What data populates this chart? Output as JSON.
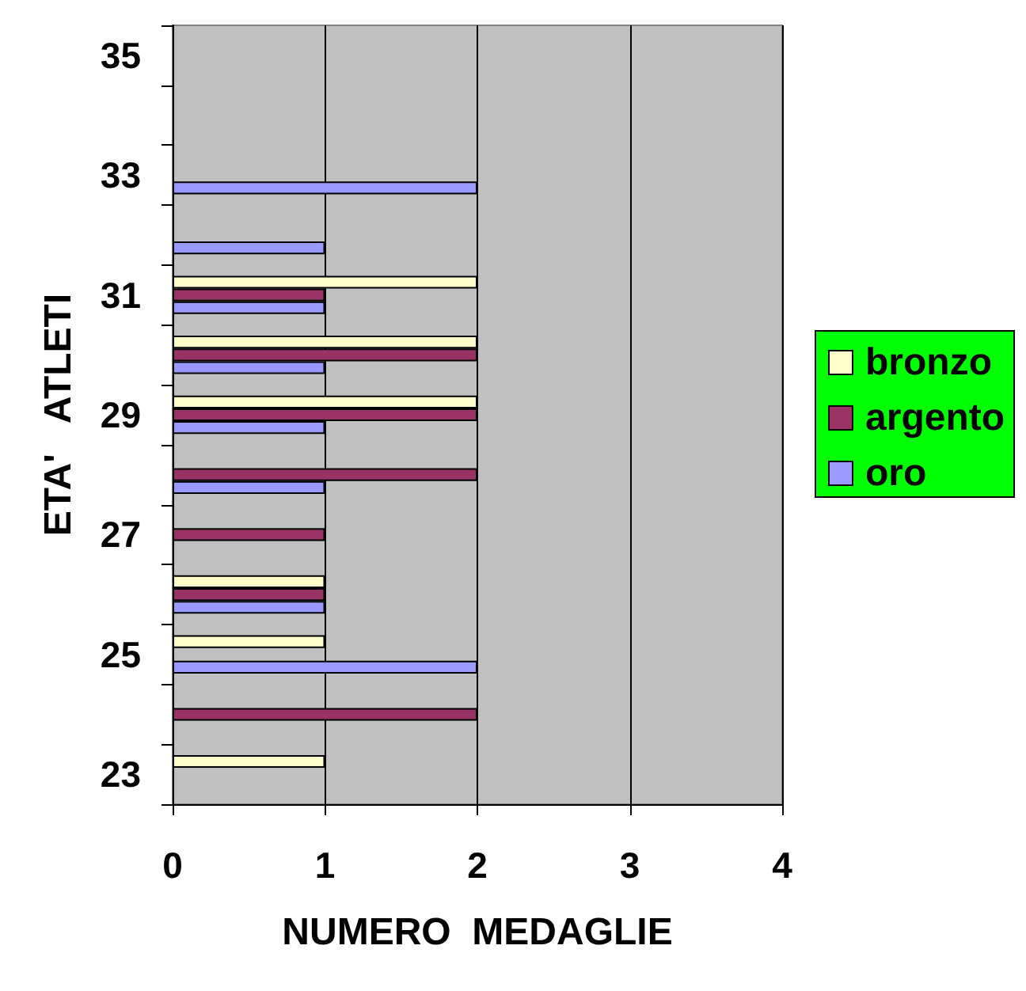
{
  "chart_data": {
    "type": "bar",
    "orientation": "horizontal",
    "xlabel": "NUMERO  MEDAGLIE",
    "ylabel": "ETA'   ATLETI",
    "categories": [
      "35",
      null,
      "33",
      null,
      "31",
      null,
      "29",
      null,
      "27",
      null,
      "25",
      null,
      "23"
    ],
    "series": [
      {
        "name": "bronzo",
        "color": "#ffffcc",
        "values": [
          null,
          null,
          null,
          null,
          2,
          2,
          2,
          null,
          null,
          1,
          1,
          null,
          1
        ]
      },
      {
        "name": "argento",
        "color": "#993366",
        "values": [
          null,
          null,
          null,
          null,
          1,
          2,
          2,
          2,
          1,
          1,
          null,
          2,
          null
        ]
      },
      {
        "name": "oro",
        "color": "#9999ff",
        "values": [
          null,
          null,
          2,
          1,
          1,
          1,
          1,
          1,
          null,
          1,
          2,
          null,
          null
        ]
      }
    ],
    "xlim": [
      0,
      4
    ],
    "xticks": [
      0,
      1,
      2,
      3,
      4
    ],
    "grid": "x",
    "legend": "right"
  }
}
